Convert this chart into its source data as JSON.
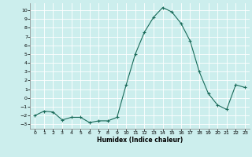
{
  "x": [
    0,
    1,
    2,
    3,
    4,
    5,
    6,
    7,
    8,
    9,
    10,
    11,
    12,
    13,
    14,
    15,
    16,
    17,
    18,
    19,
    20,
    21,
    22,
    23
  ],
  "y": [
    -2,
    -1.5,
    -1.6,
    -2.5,
    -2.2,
    -2.2,
    -2.8,
    -2.6,
    -2.6,
    -2.2,
    1.5,
    5.0,
    7.5,
    9.2,
    10.3,
    9.8,
    8.5,
    6.5,
    3.0,
    0.5,
    -0.8,
    -1.3,
    1.5,
    1.2
  ],
  "xlabel": "Humidex (Indice chaleur)",
  "xlim": [
    -0.5,
    23.5
  ],
  "ylim": [
    -3.5,
    10.8
  ],
  "yticks": [
    -3,
    -2,
    -1,
    0,
    1,
    2,
    3,
    4,
    5,
    6,
    7,
    8,
    9,
    10
  ],
  "xticks": [
    0,
    1,
    2,
    3,
    4,
    5,
    6,
    7,
    8,
    9,
    10,
    11,
    12,
    13,
    14,
    15,
    16,
    17,
    18,
    19,
    20,
    21,
    22,
    23
  ],
  "line_color": "#1a6b5a",
  "marker": "+",
  "bg_color": "#cceeed",
  "grid_color": "#ffffff",
  "spine_color": "#888888"
}
